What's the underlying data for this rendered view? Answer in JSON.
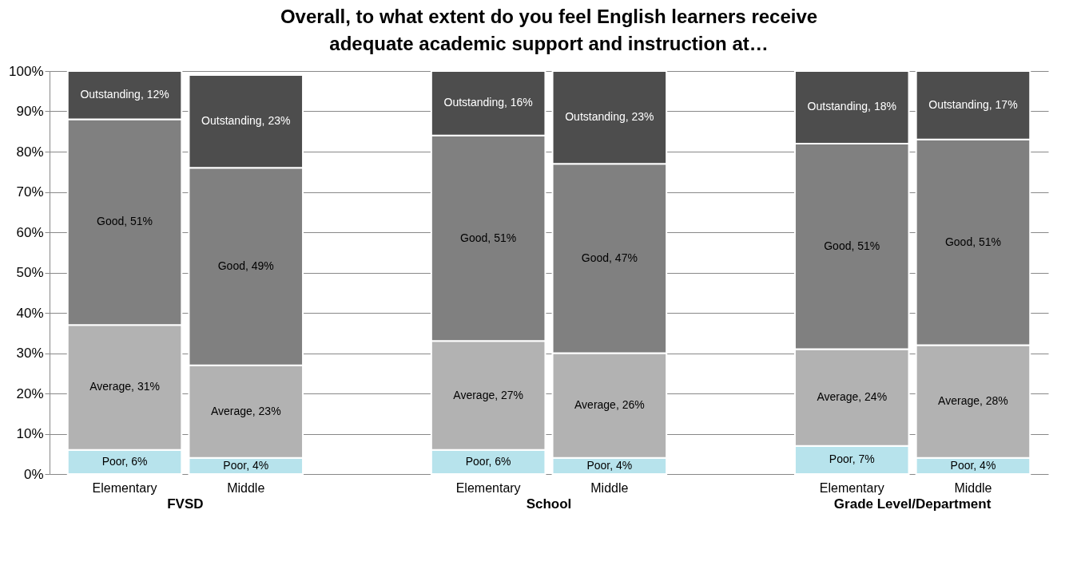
{
  "chart_data": {
    "type": "bar",
    "stacked": true,
    "title": "Overall, to what extent do you feel English learners receive adequate academic support and instruction at…",
    "categories": [
      "Elementary",
      "Middle",
      "Elementary",
      "Middle",
      "Elementary",
      "Middle"
    ],
    "annotations": [
      "FVSD",
      "School",
      "Grade Level/Department"
    ],
    "series": [
      {
        "color": "#b7e3ec",
        "values": [
          6,
          4,
          6,
          4,
          7,
          4
        ],
        "value_labels": [
          "Poor, 6%",
          "Poor, 4%",
          "Poor, 6%",
          "Poor, 4%",
          "Poor, 7%",
          "Poor, 4%"
        ]
      },
      {
        "color": "#b2b2b2",
        "values": [
          31,
          23,
          27,
          26,
          24,
          28
        ],
        "value_labels": [
          "Average, 31%",
          "Average, 23%",
          "Average, 27%",
          "Average, 26%",
          "Average, 24%",
          "Average, 28%"
        ]
      },
      {
        "color": "#808080",
        "values": [
          51,
          49,
          51,
          47,
          51,
          51
        ],
        "value_labels": [
          "Good, 51%",
          "Good, 49%",
          "Good, 51%",
          "Good, 47%",
          "Good, 51%",
          "Good, 51%"
        ]
      },
      {
        "color": "#4d4d4d",
        "values": [
          12,
          23,
          16,
          23,
          18,
          17
        ],
        "value_labels": [
          "Outstanding, 12%",
          "Outstanding, 23%",
          "Outstanding, 16%",
          "Outstanding, 23%",
          "Outstanding, 18%",
          "Outstanding, 17%"
        ]
      }
    ],
    "ylim": [
      0,
      100
    ],
    "yticks": [
      {
        "value": 0,
        "label": "0%"
      },
      {
        "value": 10,
        "label": "10%"
      },
      {
        "value": 20,
        "label": "20%"
      },
      {
        "value": 30,
        "label": "30%"
      },
      {
        "value": 40,
        "label": "40%"
      },
      {
        "value": 50,
        "label": "50%"
      },
      {
        "value": 60,
        "label": "60%"
      },
      {
        "value": 70,
        "label": "70%"
      },
      {
        "value": 80,
        "label": "80%"
      },
      {
        "value": 90,
        "label": "90%"
      },
      {
        "value": 100,
        "label": "100%"
      }
    ],
    "grid": "y",
    "legend": false
  }
}
